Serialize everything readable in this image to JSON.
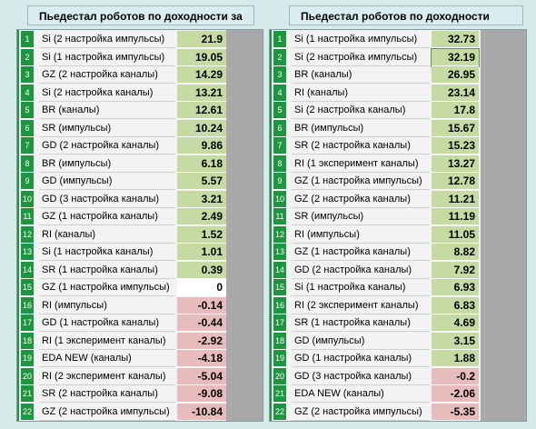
{
  "left_panel": {
    "title": "Пьедестал роботов по доходности за Июль %",
    "rows": [
      {
        "rank": "1",
        "name": "Si (2 настройка импульсы)",
        "value": "21.9",
        "sign": "pos"
      },
      {
        "rank": "2",
        "name": "Si (1 настройка импульсы)",
        "value": "19.05",
        "sign": "pos"
      },
      {
        "rank": "3",
        "name": "GZ (2 настройка каналы)",
        "value": "14.29",
        "sign": "pos"
      },
      {
        "rank": "4",
        "name": "Si (2 настройка каналы)",
        "value": "13.21",
        "sign": "pos"
      },
      {
        "rank": "5",
        "name": "BR (каналы)",
        "value": "12.61",
        "sign": "pos"
      },
      {
        "rank": "6",
        "name": "SR (импульсы)",
        "value": "10.24",
        "sign": "pos"
      },
      {
        "rank": "7",
        "name": "GD (2 настройка каналы)",
        "value": "9.86",
        "sign": "pos"
      },
      {
        "rank": "8",
        "name": "BR (импульсы)",
        "value": "6.18",
        "sign": "pos"
      },
      {
        "rank": "9",
        "name": "GD  (импульсы)",
        "value": "5.57",
        "sign": "pos"
      },
      {
        "rank": "10",
        "name": "GD (3 настройка каналы)",
        "value": "3.21",
        "sign": "pos"
      },
      {
        "rank": "11",
        "name": "GZ (1 настройка каналы)",
        "value": "2.49",
        "sign": "pos"
      },
      {
        "rank": "12",
        "name": "RI (каналы)",
        "value": "1.52",
        "sign": "pos"
      },
      {
        "rank": "13",
        "name": "Si (1 настройка каналы)",
        "value": "1.01",
        "sign": "pos"
      },
      {
        "rank": "14",
        "name": "SR (1 настройка каналы)",
        "value": "0.39",
        "sign": "pos"
      },
      {
        "rank": "15",
        "name": "GZ (1 настройка импульсы)",
        "value": "0",
        "sign": "zero"
      },
      {
        "rank": "16",
        "name": "RI  (импульсы)",
        "value": "-0.14",
        "sign": "neg"
      },
      {
        "rank": "17",
        "name": "GD (1 настройка каналы)",
        "value": "-0.44",
        "sign": "neg"
      },
      {
        "rank": "18",
        "name": "RI (1 эксперимент каналы)",
        "value": "-2.92",
        "sign": "neg"
      },
      {
        "rank": "19",
        "name": "EDA NEW (каналы)",
        "value": "-4.18",
        "sign": "neg"
      },
      {
        "rank": "20",
        "name": "RI (2 эксперимент каналы)",
        "value": "-5.04",
        "sign": "neg"
      },
      {
        "rank": "21",
        "name": "SR (2 настройка каналы)",
        "value": "-9.08",
        "sign": "neg"
      },
      {
        "rank": "22",
        "name": "GZ (2 настройка импульсы)",
        "value": "-10.84",
        "sign": "neg"
      }
    ]
  },
  "right_panel": {
    "title": "Пьедестал роботов по доходности Итого %",
    "rows": [
      {
        "rank": "1",
        "name": "Si (1 настройка импульсы)",
        "value": "32.73",
        "sign": "pos"
      },
      {
        "rank": "2",
        "name": "Si (2 настройка импульсы)",
        "value": "32.19",
        "sign": "pos"
      },
      {
        "rank": "3",
        "name": "BR (каналы)",
        "value": "26.95",
        "sign": "pos"
      },
      {
        "rank": "4",
        "name": "RI (каналы)",
        "value": "23.14",
        "sign": "pos"
      },
      {
        "rank": "5",
        "name": "Si (2 настройка каналы)",
        "value": "17.8",
        "sign": "pos"
      },
      {
        "rank": "6",
        "name": "BR (импульсы)",
        "value": "15.67",
        "sign": "pos"
      },
      {
        "rank": "7",
        "name": "SR (2 настройка каналы)",
        "value": "15.23",
        "sign": "pos"
      },
      {
        "rank": "8",
        "name": "RI (1 эксперимент каналы)",
        "value": "13.27",
        "sign": "pos"
      },
      {
        "rank": "9",
        "name": "GZ (1 настройка импульсы)",
        "value": "12.78",
        "sign": "pos"
      },
      {
        "rank": "10",
        "name": "GZ (2 настройка каналы)",
        "value": "11.21",
        "sign": "pos"
      },
      {
        "rank": "11",
        "name": "SR (импульсы)",
        "value": "11.19",
        "sign": "pos"
      },
      {
        "rank": "12",
        "name": "RI (импульсы)",
        "value": "11.05",
        "sign": "pos"
      },
      {
        "rank": "13",
        "name": "GZ (1 настройка каналы)",
        "value": "8.82",
        "sign": "pos"
      },
      {
        "rank": "14",
        "name": "GD (2 настройка каналы)",
        "value": "7.92",
        "sign": "pos"
      },
      {
        "rank": "15",
        "name": "Si (1 настройка каналы)",
        "value": "6.93",
        "sign": "pos"
      },
      {
        "rank": "16",
        "name": "RI (2 эксперимент каналы)",
        "value": "6.83",
        "sign": "pos"
      },
      {
        "rank": "17",
        "name": "SR (1 настройка каналы)",
        "value": "4.69",
        "sign": "pos"
      },
      {
        "rank": "18",
        "name": "GD  (импульсы)",
        "value": "3.15",
        "sign": "pos"
      },
      {
        "rank": "19",
        "name": "GD (1 настройка каналы)",
        "value": "1.88",
        "sign": "pos"
      },
      {
        "rank": "20",
        "name": "GD (3 настройка каналы)",
        "value": "-0.2",
        "sign": "neg"
      },
      {
        "rank": "21",
        "name": "EDA NEW (каналы)",
        "value": "-2.06",
        "sign": "neg"
      },
      {
        "rank": "22",
        "name": "GZ (2 настройка импульсы)",
        "value": "-5.35",
        "sign": "neg"
      }
    ]
  },
  "colors": {
    "rank_green": "#1e9641",
    "positive_fill": "#c6dba3",
    "negative_fill": "#e8bcbc",
    "zero_fill": "#ffffff",
    "background": "#d6eaea"
  }
}
